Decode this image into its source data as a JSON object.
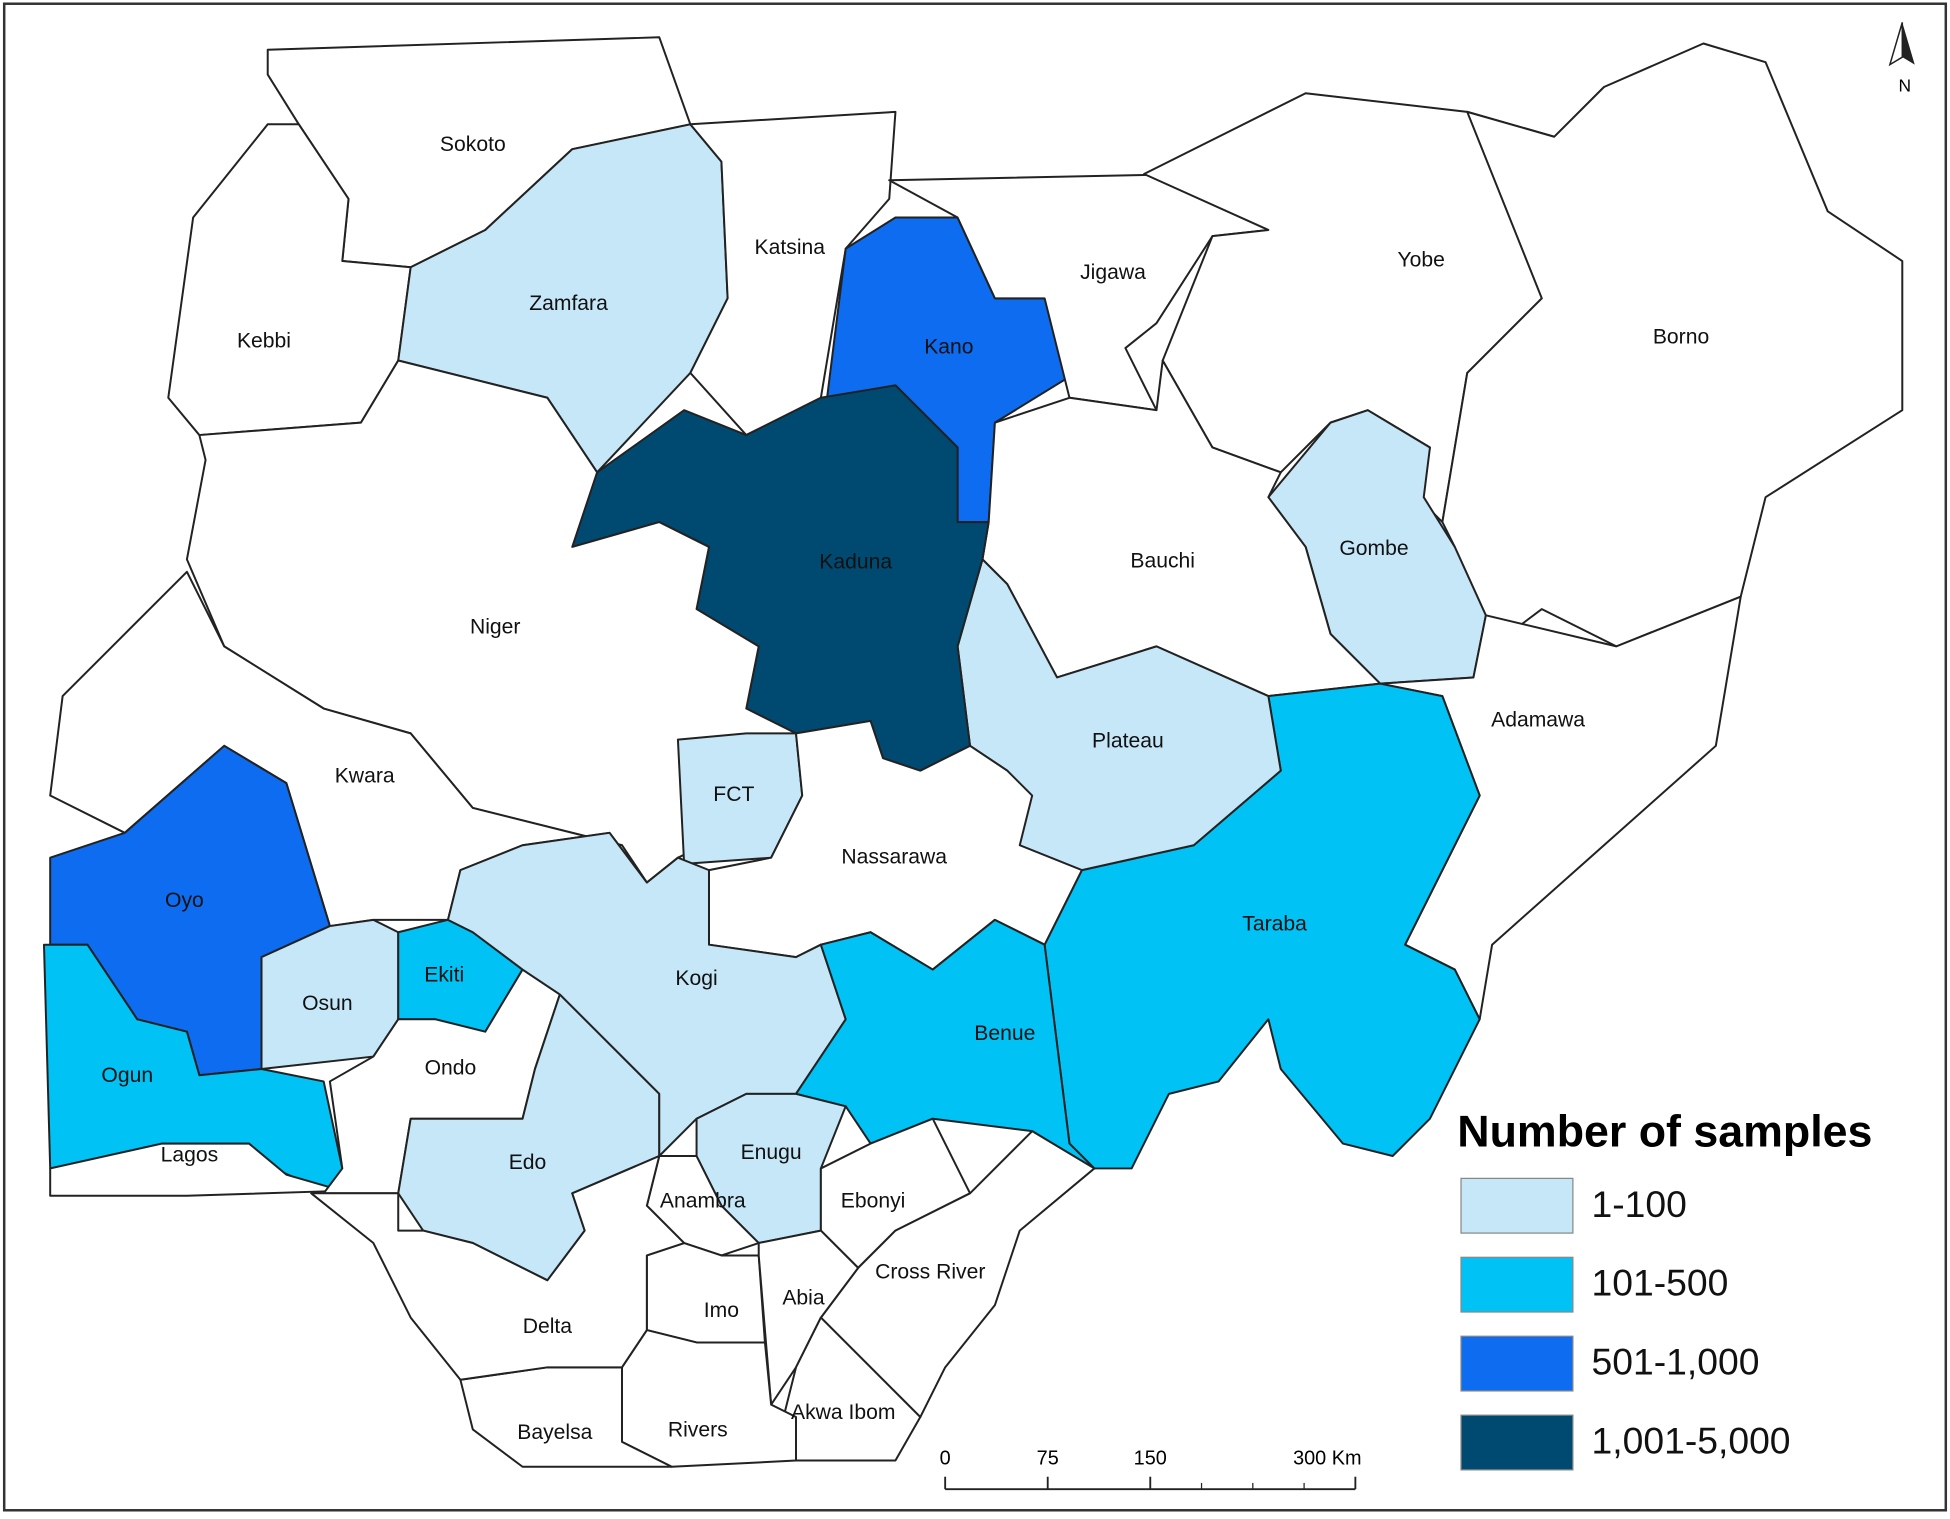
{
  "map": {
    "north": "N",
    "legend_title": "Number of samples",
    "legend": [
      {
        "label": "1-100",
        "color": "#c6e7f8"
      },
      {
        "label": "101-500",
        "color": "#00c2f4"
      },
      {
        "label": "501-1,000",
        "color": "#0d6cef"
      },
      {
        "label": "1,001-5,000",
        "color": "#004a72"
      }
    ],
    "states": [
      {
        "name": "Sokoto"
      },
      {
        "name": "Kebbi"
      },
      {
        "name": "Zamfara",
        "class": 0
      },
      {
        "name": "Katsina"
      },
      {
        "name": "Kano",
        "class": 2
      },
      {
        "name": "Jigawa"
      },
      {
        "name": "Yobe"
      },
      {
        "name": "Borno"
      },
      {
        "name": "Gombe",
        "class": 0
      },
      {
        "name": "Bauchi"
      },
      {
        "name": "Adamawa"
      },
      {
        "name": "Taraba",
        "class": 1
      },
      {
        "name": "Plateau",
        "class": 0
      },
      {
        "name": "Kaduna",
        "class": 3
      },
      {
        "name": "Niger"
      },
      {
        "name": "FCT",
        "class": 0
      },
      {
        "name": "Nassarawa"
      },
      {
        "name": "Kwara"
      },
      {
        "name": "Oyo",
        "class": 2
      },
      {
        "name": "Ogun",
        "class": 1
      },
      {
        "name": "Lagos"
      },
      {
        "name": "Osun",
        "class": 0
      },
      {
        "name": "Ekiti",
        "class": 1
      },
      {
        "name": "Ondo"
      },
      {
        "name": "Edo",
        "class": 0
      },
      {
        "name": "Kogi",
        "class": 0
      },
      {
        "name": "Benue",
        "class": 1
      },
      {
        "name": "Enugu",
        "class": 0
      },
      {
        "name": "Ebonyi"
      },
      {
        "name": "Anambra"
      },
      {
        "name": "Cross River"
      },
      {
        "name": "Imo"
      },
      {
        "name": "Abia"
      },
      {
        "name": "Akwa Ibom"
      },
      {
        "name": "Rivers"
      },
      {
        "name": "Bayelsa"
      },
      {
        "name": "Delta"
      }
    ],
    "scale_bar": {
      "ticks": [
        0,
        75,
        150,
        {
          "value": 300,
          "label": "300 Km"
        }
      ]
    }
  }
}
